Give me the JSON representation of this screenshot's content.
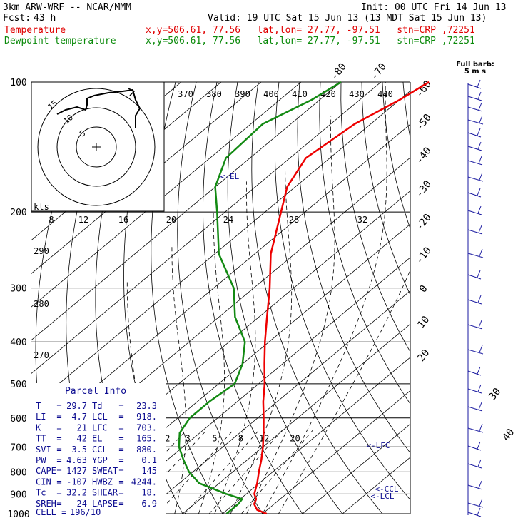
{
  "header": {
    "model": "3km ARW-WRF -- NCAR/MMM",
    "init": "Init: 00 UTC Fri 14 Jun 13",
    "fcst_label": "Fcst:",
    "fcst_value": "43 h",
    "valid": "Valid: 19 UTC Sat 15 Jun 13 (13 MDT Sat 15 Jun 13)",
    "temperature_label": "Temperature",
    "temperature_loc": "x,y=506.61, 77.56   lat,lon= 27.77, -97.51   stn=CRP ,72251",
    "dewpoint_label": "Dewpoint temperature",
    "dewpoint_loc": "x,y=506.61, 77.56   lat,lon= 27.77, -97.51   stn=CRP ,72251"
  },
  "full_barb": {
    "line1": "Full barb:",
    "line2": "5 m s"
  },
  "colors": {
    "temperature": "#ee0000",
    "dewpoint": "#138a13",
    "barbs": "#1a1aa0",
    "parcel_text": "#0b0b90",
    "grid": "#000000"
  },
  "chart_data": {
    "type": "line",
    "chart_kind": "Skew-T log-P",
    "y_axis": {
      "scale": "log",
      "ticks": [
        100,
        200,
        300,
        400,
        500,
        600,
        700,
        800,
        900,
        1000
      ],
      "ylim": [
        1000,
        100
      ]
    },
    "isotherm_labels": [
      "-80",
      "-70",
      "-60",
      "-50",
      "-40",
      "-30",
      "-20",
      "-10",
      "0",
      "10",
      "20",
      "30",
      "40"
    ],
    "theta_e_labels": [
      "370",
      "380",
      "390",
      "400",
      "410",
      "420",
      "430",
      "440"
    ],
    "theta_labels": [
      "290",
      "280",
      "270"
    ],
    "mixing_ratio_labels": [
      "2",
      "3",
      "5",
      "8",
      "12",
      "20"
    ],
    "series": [
      {
        "name": "Temperature",
        "points": [
          [
            1000,
            31
          ],
          [
            980,
            27.5
          ],
          [
            950,
            25
          ],
          [
            925,
            24
          ],
          [
            900,
            22
          ],
          [
            850,
            19.5
          ],
          [
            800,
            16.5
          ],
          [
            750,
            13.5
          ],
          [
            700,
            10
          ],
          [
            650,
            6
          ],
          [
            600,
            1.5
          ],
          [
            550,
            -3.5
          ],
          [
            500,
            -8.5
          ],
          [
            450,
            -14.5
          ],
          [
            400,
            -21
          ],
          [
            350,
            -28
          ],
          [
            300,
            -36
          ],
          [
            250,
            -46
          ],
          [
            200,
            -56
          ],
          [
            175,
            -62
          ],
          [
            150,
            -66
          ],
          [
            125,
            -64
          ],
          [
            110,
            -60
          ],
          [
            100,
            -58
          ]
        ]
      },
      {
        "name": "Dewpoint temperature",
        "points": [
          [
            1000,
            21
          ],
          [
            950,
            21
          ],
          [
            925,
            20.5
          ],
          [
            900,
            15
          ],
          [
            850,
            5
          ],
          [
            800,
            -1
          ],
          [
            750,
            -6
          ],
          [
            700,
            -11
          ],
          [
            650,
            -15
          ],
          [
            600,
            -17
          ],
          [
            550,
            -17
          ],
          [
            500,
            -16
          ],
          [
            450,
            -20
          ],
          [
            400,
            -26
          ],
          [
            350,
            -36
          ],
          [
            300,
            -45
          ],
          [
            250,
            -59
          ],
          [
            200,
            -72
          ],
          [
            175,
            -80
          ],
          [
            150,
            -86
          ],
          [
            125,
            -87
          ],
          [
            110,
            -82
          ],
          [
            100,
            -80
          ]
        ]
      }
    ],
    "annotations": {
      "el": "<-EL",
      "lfc": "<-LFC",
      "ccl": "<-CCL",
      "lcl": "<-LCL"
    }
  },
  "hodograph": {
    "units": "kts",
    "rings": [
      "5",
      "10",
      "15"
    ],
    "speed_ticks": [
      "8",
      "12",
      "16",
      "20",
      "24",
      "28",
      "32"
    ]
  },
  "parcel_info": {
    "title": "Parcel Info",
    "rows": [
      {
        "k1": "T",
        "v1": "29.7",
        "k2": "Td",
        "v2": "23.3"
      },
      {
        "k1": "LI",
        "v1": "-4.7",
        "k2": "LCL",
        "v2": "918."
      },
      {
        "k1": "K",
        "v1": "21",
        "k2": "LFC",
        "v2": "703."
      },
      {
        "k1": "TT",
        "v1": "42",
        "k2": "EL",
        "v2": "165."
      },
      {
        "k1": "SVI",
        "v1": "3.5",
        "k2": "CCL",
        "v2": "880."
      },
      {
        "k1": "PW",
        "v1": "4.63",
        "k2": "YGP",
        "v2": "0.1"
      },
      {
        "k1": "CAPE",
        "v1": "1427",
        "k2": "SWEAT",
        "v2": "145"
      },
      {
        "k1": "CIN",
        "v1": "-107",
        "k2": "HWBZ",
        "v2": "4244."
      },
      {
        "k1": "Tc",
        "v1": "32.2",
        "k2": "SHEAR",
        "v2": "18."
      },
      {
        "k1": "SREH",
        "v1": "24",
        "k2": "LAPSE",
        "v2": "6.9"
      }
    ],
    "cell_label": "CELL =",
    "cell_value": "196/10"
  }
}
